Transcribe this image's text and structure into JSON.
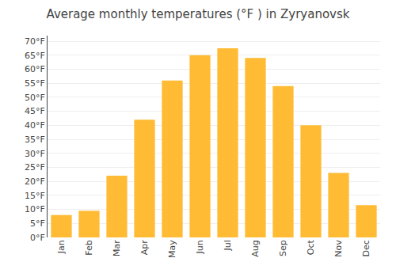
{
  "chart_data": {
    "type": "bar",
    "title": "Average monthly temperatures (°F ) in Zyryanovsk",
    "categories": [
      "Jan",
      "Feb",
      "Mar",
      "Apr",
      "May",
      "Jun",
      "Jul",
      "Aug",
      "Sep",
      "Oct",
      "Nov",
      "Dec"
    ],
    "values": [
      8,
      9.5,
      22,
      42,
      56,
      65,
      67.5,
      64,
      54,
      40,
      23,
      11.5
    ],
    "color": "#FFBB33",
    "ylim": [
      0,
      72
    ],
    "yticks": [
      {
        "value": 0,
        "label": "0°F"
      },
      {
        "value": 5,
        "label": "5°F"
      },
      {
        "value": 10,
        "label": "10°F"
      },
      {
        "value": 15,
        "label": "15°F"
      },
      {
        "value": 20,
        "label": "20°F"
      },
      {
        "value": 25,
        "label": "25°F"
      },
      {
        "value": 30,
        "label": "30°F"
      },
      {
        "value": 35,
        "label": "35°F"
      },
      {
        "value": 40,
        "label": "40°F"
      },
      {
        "value": 45,
        "label": "45°F"
      },
      {
        "value": 50,
        "label": "50°F"
      },
      {
        "value": 55,
        "label": "55°F"
      },
      {
        "value": 60,
        "label": "60°F"
      },
      {
        "value": 65,
        "label": "65°F"
      },
      {
        "value": 70,
        "label": "70°F"
      }
    ],
    "grid": true
  }
}
